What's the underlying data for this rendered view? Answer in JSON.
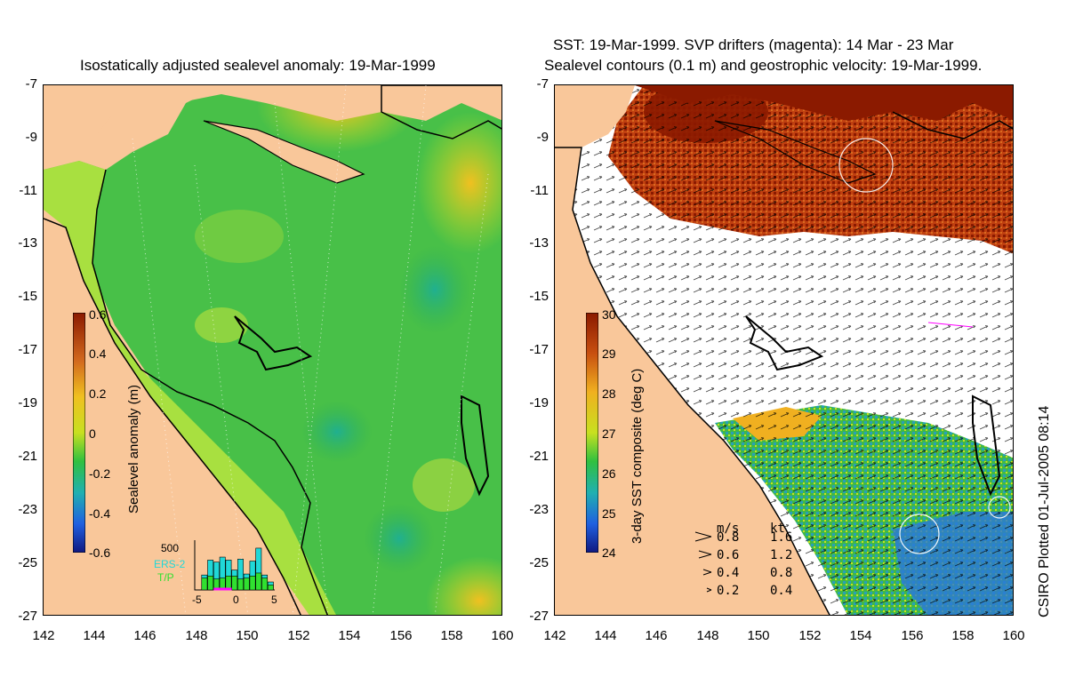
{
  "left_panel": {
    "title": "Isostatically adjusted sealevel anomaly: 19-Mar-1999",
    "colorbar_label": "Sealevel anomaly (m)",
    "colorbar_ticks": [
      "0.6",
      "0.4",
      "0.2",
      "0",
      "-0.2",
      "-0.4",
      "-0.6"
    ],
    "colorbar_colors": [
      "#8b1a00",
      "#d2691e",
      "#f0c020",
      "#c8e020",
      "#30c040",
      "#20b0b0",
      "#2060e0",
      "#101880"
    ],
    "histogram": {
      "ymax_label": "500",
      "x_ticks": [
        "-5",
        "0",
        "5"
      ],
      "ers2_label": "ERS-2",
      "tp_label": "T/P",
      "ers2_color": "#20d8d8",
      "tp_color": "#30e030",
      "highlight_color": "#ff00ff",
      "ers2_values": [
        0,
        150,
        300,
        280,
        330,
        300,
        200,
        310,
        160,
        290,
        420,
        150,
        80
      ],
      "tp_values": [
        0,
        120,
        140,
        110,
        120,
        140,
        140,
        110,
        120,
        140,
        170,
        120,
        50
      ]
    }
  },
  "right_panel": {
    "title_line1": "SST: 19-Mar-1999. SVP drifters (magenta): 14 Mar - 23 Mar",
    "title_line2": "Sealevel contours (0.1 m) and geostrophic velocity: 19-Mar-1999.",
    "colorbar_label": "3-day SST composite (deg C)",
    "colorbar_ticks": [
      "30",
      "29",
      "28",
      "27",
      "26",
      "25",
      "24"
    ],
    "colorbar_colors": [
      "#8b1a00",
      "#c85010",
      "#f0b020",
      "#c8e020",
      "#30c040",
      "#20b0b0",
      "#2060e0",
      "#101880"
    ],
    "velocity_legend": {
      "header_ms": "m/s",
      "header_kt": "kt",
      "rows": [
        {
          "ms": "0.8",
          "kt": "1.6"
        },
        {
          "ms": "0.6",
          "kt": "1.2"
        },
        {
          "ms": "0.4",
          "kt": "0.8"
        },
        {
          "ms": "0.2",
          "kt": "0.4"
        }
      ]
    }
  },
  "axes": {
    "y_ticks": [
      "-7",
      "-9",
      "-11",
      "-13",
      "-15",
      "-17",
      "-19",
      "-21",
      "-23",
      "-25",
      "-27"
    ],
    "x_ticks": [
      "142",
      "144",
      "146",
      "148",
      "150",
      "152",
      "154",
      "156",
      "158",
      "160"
    ]
  },
  "credit": "CSIRO Plotted 01-Jul-2005 08:14",
  "colors": {
    "land": "#f9c79a",
    "ocean_green": "#48c048",
    "coast": "#000000"
  }
}
